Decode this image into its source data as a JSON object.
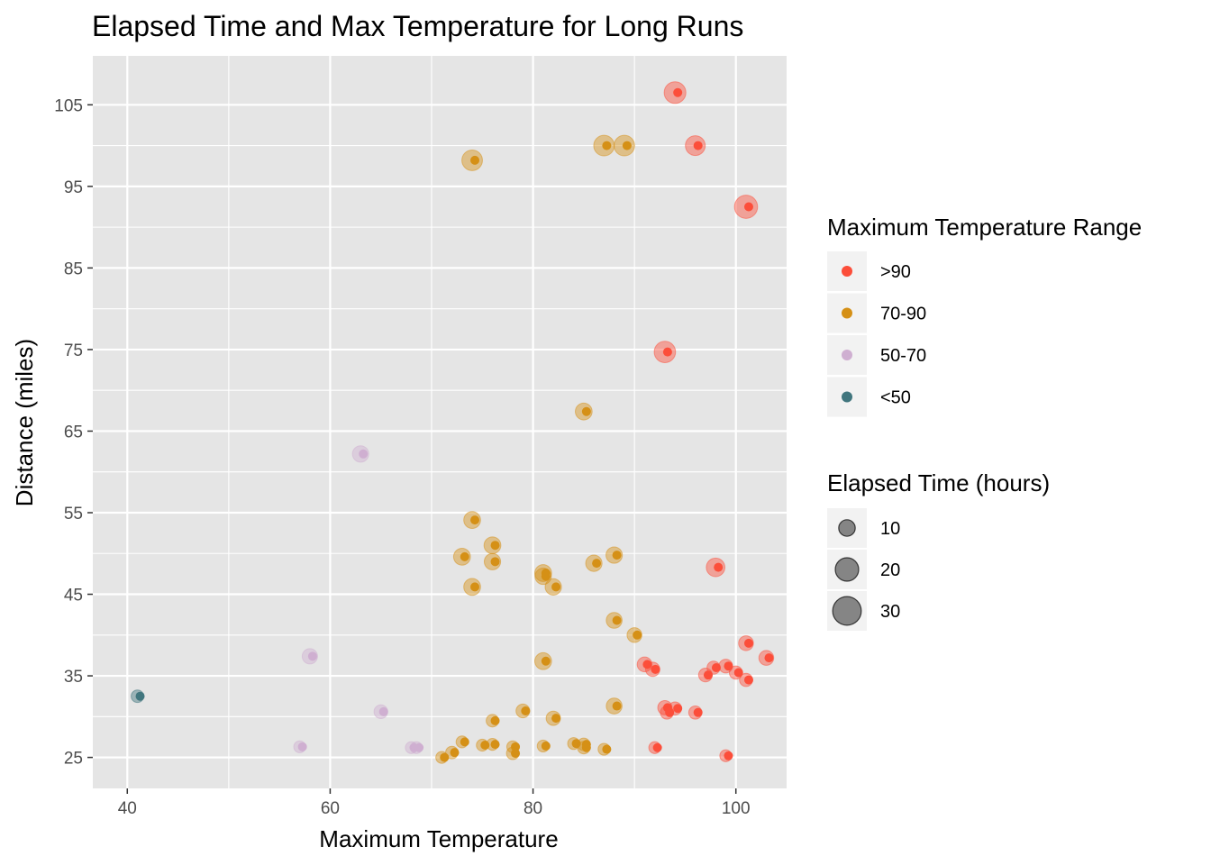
{
  "chart_data": {
    "type": "scatter",
    "title": "Elapsed Time and Max Temperature for Long Runs",
    "xlabel": "Maximum Temperature",
    "ylabel": "Distance (miles)",
    "xlim": [
      36.6,
      105.0
    ],
    "ylim": [
      21.2,
      111.0
    ],
    "xticks": [
      40,
      60,
      80,
      100
    ],
    "yticks": [
      25,
      35,
      45,
      55,
      65,
      75,
      85,
      95,
      105
    ],
    "grid": true,
    "background": "#e5e5e5",
    "legend_placement": "right",
    "color_legend": {
      "title": "Maximum Temperature Range",
      "entries": [
        {
          "label": ">90",
          "color": "#fc4e3a"
        },
        {
          "label": "70-90",
          "color": "#d59016"
        },
        {
          "label": "50-70",
          "color": "#cfafd1"
        },
        {
          "label": "<50",
          "color": "#41767e"
        }
      ]
    },
    "size_legend": {
      "title": "Elapsed Time (hours)",
      "entries": [
        {
          "label": "10",
          "value": 10
        },
        {
          "label": "20",
          "value": 20
        },
        {
          "label": "30",
          "value": 30
        }
      ]
    },
    "points": [
      {
        "x": 94.0,
        "y": 106.5,
        "hours": 30,
        "group": ">90"
      },
      {
        "x": 96.0,
        "y": 100.0,
        "hours": 25,
        "group": ">90"
      },
      {
        "x": 101.0,
        "y": 92.5,
        "hours": 34,
        "group": ">90"
      },
      {
        "x": 93.0,
        "y": 74.7,
        "hours": 29,
        "group": ">90"
      },
      {
        "x": 98.0,
        "y": 48.3,
        "hours": 22,
        "group": ">90"
      },
      {
        "x": 101.0,
        "y": 39.0,
        "hours": 14,
        "group": ">90"
      },
      {
        "x": 103.0,
        "y": 37.2,
        "hours": 14,
        "group": ">90"
      },
      {
        "x": 91.0,
        "y": 36.4,
        "hours": 14,
        "group": ">90"
      },
      {
        "x": 91.8,
        "y": 35.8,
        "hours": 13,
        "group": ">90"
      },
      {
        "x": 97.8,
        "y": 36.0,
        "hours": 11,
        "group": ">90"
      },
      {
        "x": 99.0,
        "y": 36.2,
        "hours": 12,
        "group": ">90"
      },
      {
        "x": 100.0,
        "y": 35.4,
        "hours": 11,
        "group": ">90"
      },
      {
        "x": 97.0,
        "y": 35.1,
        "hours": 12,
        "group": ">90"
      },
      {
        "x": 101.0,
        "y": 34.5,
        "hours": 11,
        "group": ">90"
      },
      {
        "x": 93.0,
        "y": 31.1,
        "hours": 13,
        "group": ">90"
      },
      {
        "x": 94.0,
        "y": 31.0,
        "hours": 11,
        "group": ">90"
      },
      {
        "x": 93.2,
        "y": 30.5,
        "hours": 11,
        "group": ">90"
      },
      {
        "x": 96.0,
        "y": 30.5,
        "hours": 11,
        "group": ">90"
      },
      {
        "x": 92.0,
        "y": 26.2,
        "hours": 9,
        "group": ">90"
      },
      {
        "x": 99.0,
        "y": 25.2,
        "hours": 9,
        "group": ">90"
      },
      {
        "x": 74.0,
        "y": 98.2,
        "hours": 27,
        "group": "70-90"
      },
      {
        "x": 87.0,
        "y": 100.0,
        "hours": 27,
        "group": "70-90"
      },
      {
        "x": 89.0,
        "y": 100.0,
        "hours": 27,
        "group": "70-90"
      },
      {
        "x": 85.0,
        "y": 67.4,
        "hours": 18,
        "group": "70-90"
      },
      {
        "x": 74.0,
        "y": 54.1,
        "hours": 18,
        "group": "70-90"
      },
      {
        "x": 73.0,
        "y": 49.6,
        "hours": 18,
        "group": "70-90"
      },
      {
        "x": 76.0,
        "y": 51.0,
        "hours": 18,
        "group": "70-90"
      },
      {
        "x": 76.0,
        "y": 49.0,
        "hours": 17,
        "group": "70-90"
      },
      {
        "x": 74.0,
        "y": 45.9,
        "hours": 18,
        "group": "70-90"
      },
      {
        "x": 81.0,
        "y": 47.6,
        "hours": 18,
        "group": "70-90"
      },
      {
        "x": 81.0,
        "y": 47.2,
        "hours": 17,
        "group": "70-90"
      },
      {
        "x": 82.0,
        "y": 45.9,
        "hours": 17,
        "group": "70-90"
      },
      {
        "x": 86.0,
        "y": 48.8,
        "hours": 17,
        "group": "70-90"
      },
      {
        "x": 88.0,
        "y": 49.8,
        "hours": 17,
        "group": "70-90"
      },
      {
        "x": 88.0,
        "y": 41.8,
        "hours": 16,
        "group": "70-90"
      },
      {
        "x": 90.0,
        "y": 40.0,
        "hours": 14,
        "group": "70-90"
      },
      {
        "x": 81.0,
        "y": 36.8,
        "hours": 18,
        "group": "70-90"
      },
      {
        "x": 88.0,
        "y": 31.3,
        "hours": 16,
        "group": "70-90"
      },
      {
        "x": 79.0,
        "y": 30.7,
        "hours": 12,
        "group": "70-90"
      },
      {
        "x": 82.0,
        "y": 29.8,
        "hours": 13,
        "group": "70-90"
      },
      {
        "x": 76.0,
        "y": 29.5,
        "hours": 10,
        "group": "70-90"
      },
      {
        "x": 73.0,
        "y": 26.9,
        "hours": 9,
        "group": "70-90"
      },
      {
        "x": 72.0,
        "y": 25.6,
        "hours": 10,
        "group": "70-90"
      },
      {
        "x": 75.0,
        "y": 26.5,
        "hours": 9,
        "group": "70-90"
      },
      {
        "x": 76.0,
        "y": 26.6,
        "hours": 9,
        "group": "70-90"
      },
      {
        "x": 78.0,
        "y": 26.3,
        "hours": 9,
        "group": "70-90"
      },
      {
        "x": 78.0,
        "y": 25.5,
        "hours": 10,
        "group": "70-90"
      },
      {
        "x": 81.0,
        "y": 26.4,
        "hours": 9,
        "group": "70-90"
      },
      {
        "x": 84.0,
        "y": 26.7,
        "hours": 9,
        "group": "70-90"
      },
      {
        "x": 85.0,
        "y": 26.6,
        "hours": 10,
        "group": "70-90"
      },
      {
        "x": 85.0,
        "y": 26.2,
        "hours": 10,
        "group": "70-90"
      },
      {
        "x": 87.0,
        "y": 26.0,
        "hours": 9,
        "group": "70-90"
      },
      {
        "x": 71.0,
        "y": 25.0,
        "hours": 9,
        "group": "70-90"
      },
      {
        "x": 63.0,
        "y": 62.2,
        "hours": 17,
        "group": "50-70"
      },
      {
        "x": 58.0,
        "y": 37.4,
        "hours": 15,
        "group": "50-70"
      },
      {
        "x": 65.0,
        "y": 30.6,
        "hours": 12,
        "group": "50-70"
      },
      {
        "x": 57.0,
        "y": 26.3,
        "hours": 9,
        "group": "50-70"
      },
      {
        "x": 68.0,
        "y": 26.2,
        "hours": 9,
        "group": "50-70"
      },
      {
        "x": 68.5,
        "y": 26.2,
        "hours": 9,
        "group": "50-70"
      },
      {
        "x": 41.0,
        "y": 32.5,
        "hours": 10,
        "group": "<50"
      }
    ]
  }
}
